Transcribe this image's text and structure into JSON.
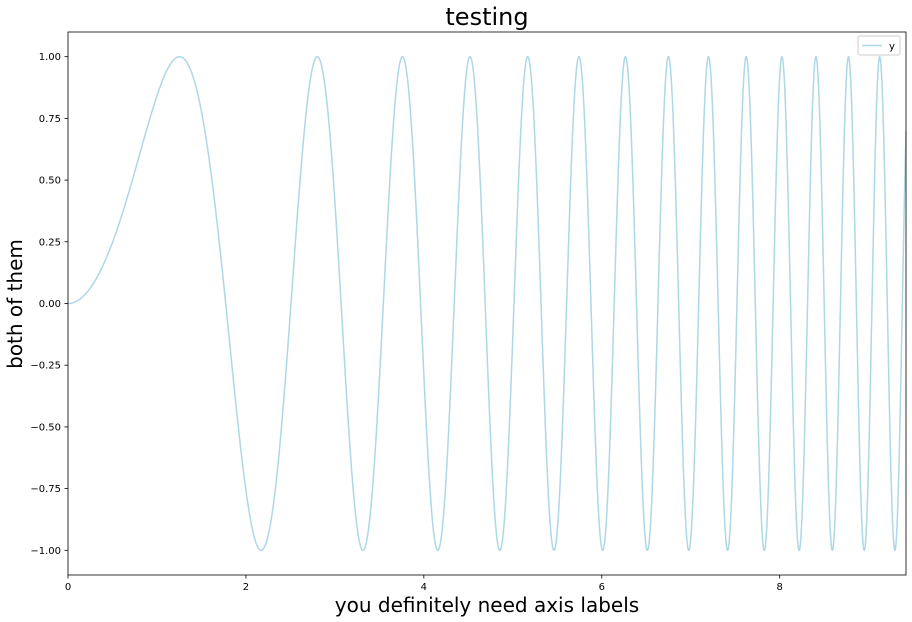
{
  "chart_data": {
    "type": "line",
    "title": "testing",
    "xlabel": "you definitely need axis labels",
    "ylabel": "both of them",
    "xlim": [
      0,
      9.42
    ],
    "ylim": [
      -1.1,
      1.1
    ],
    "x_ticks": [
      0,
      2,
      4,
      6,
      8
    ],
    "x_tick_labels": [
      "0",
      "2",
      "4",
      "6",
      "8"
    ],
    "y_ticks": [
      -1.0,
      -0.75,
      -0.5,
      -0.25,
      0.0,
      0.25,
      0.5,
      0.75,
      1.0
    ],
    "y_tick_labels": [
      "−1.00",
      "−0.75",
      "−0.50",
      "−0.25",
      "0.00",
      "0.25",
      "0.50",
      "0.75",
      "1.00"
    ],
    "grid": false,
    "legend_position": "top-right",
    "series": [
      {
        "name": "y",
        "function": "sin(x^2)",
        "x_start": 0,
        "x_end": 9.42,
        "color": "#add8e6"
      }
    ]
  }
}
